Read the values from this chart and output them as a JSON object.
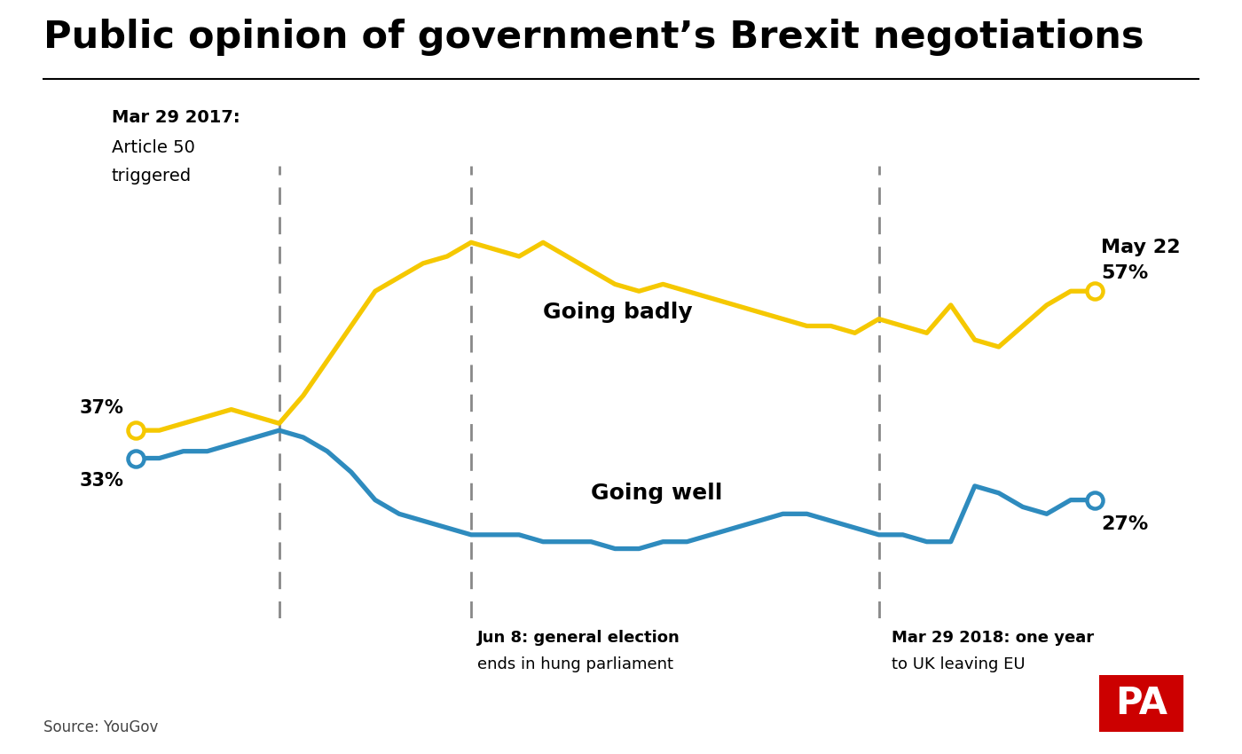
{
  "title": "Public opinion of government’s Brexit negotiations",
  "source": "Source: YouGov",
  "going_badly_label": "Going badly",
  "going_well_label": "Going well",
  "badly_color": "#F5C800",
  "well_color": "#2E8BBE",
  "background_color": "#FFFFFF",
  "vline1_label1": "Mar 29 2017:",
  "vline1_label2": "Article 50",
  "vline1_label3": "triggered",
  "vline2_label1": "Jun 8: general election",
  "vline2_label2": "ends in hung parliament",
  "vline3_label1": "Mar 29 2018: one year",
  "vline3_label2": "to UK leaving EU",
  "end_label_date": "May 22",
  "end_label_badly": "57%",
  "end_label_well": "27%",
  "start_label_badly": "37%",
  "start_label_well": "33%",
  "badly_y": [
    37,
    37,
    38,
    39,
    40,
    39,
    38,
    42,
    47,
    52,
    57,
    59,
    61,
    62,
    64,
    63,
    62,
    64,
    62,
    60,
    58,
    57,
    58,
    57,
    56,
    55,
    54,
    53,
    52,
    52,
    51,
    53,
    52,
    51,
    55,
    50,
    49,
    52,
    55,
    57,
    57
  ],
  "well_y": [
    33,
    33,
    34,
    34,
    35,
    36,
    37,
    36,
    34,
    31,
    27,
    25,
    24,
    23,
    22,
    22,
    22,
    21,
    21,
    21,
    20,
    20,
    21,
    21,
    22,
    23,
    24,
    25,
    25,
    24,
    23,
    22,
    22,
    21,
    21,
    29,
    28,
    26,
    25,
    27,
    27
  ],
  "vline1_idx": 6,
  "vline2_idx": 14,
  "vline3_idx": 31,
  "ylim_min": 10,
  "ylim_max": 75,
  "pa_logo_color": "#CC0000",
  "pa_text_color": "#FFFFFF"
}
